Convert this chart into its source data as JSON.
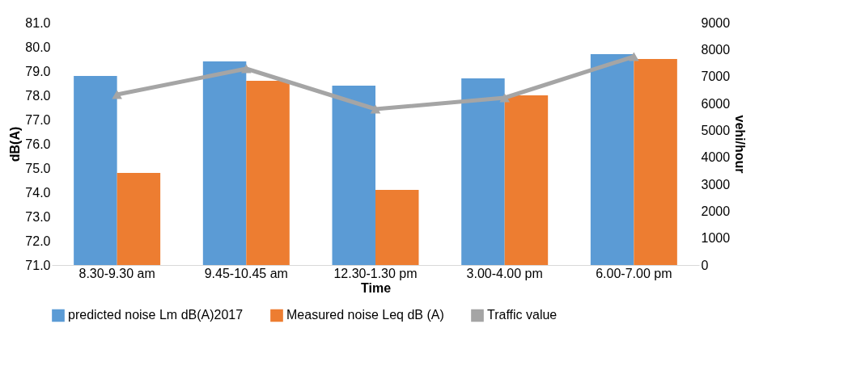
{
  "chart_data": {
    "type": "bar",
    "xlabel": "Time",
    "ylabel": "dB(A)",
    "y2label": "vehi/hour",
    "categories": [
      "8.30-9.30 am",
      "9.45-10.45 am",
      "12.30-1.30 pm",
      "3.00-4.00 pm",
      "6.00-7.00 pm"
    ],
    "series": [
      {
        "name": "predicted noise Lm dB(A)2017",
        "color": "#5b9bd5",
        "values": [
          78.8,
          79.4,
          78.4,
          78.7,
          79.7
        ]
      },
      {
        "name": "Measured noise Leq dB (A)",
        "color": "#ed7d31",
        "values": [
          74.8,
          78.6,
          74.1,
          78.0,
          79.5
        ]
      },
      {
        "name": "Traffic value",
        "color": "#a5a5a5",
        "type": "line",
        "axis": "y2",
        "marker": "triangle",
        "values": [
          6330,
          7290,
          5790,
          6210,
          7740
        ]
      }
    ],
    "ylim": [
      71,
      81
    ],
    "yticks": [
      {
        "value": 71,
        "label": "71.0"
      },
      {
        "value": 72,
        "label": "72.0"
      },
      {
        "value": 73,
        "label": "73.0"
      },
      {
        "value": 74,
        "label": "74.0"
      },
      {
        "value": 75,
        "label": "75.0"
      },
      {
        "value": 76,
        "label": "76.0"
      },
      {
        "value": 77,
        "label": "77.0"
      },
      {
        "value": 78,
        "label": "78.0"
      },
      {
        "value": 79,
        "label": "79.0"
      },
      {
        "value": 80,
        "label": "80.0"
      },
      {
        "value": 81,
        "label": "81.0"
      }
    ],
    "y2lim": [
      0,
      9000
    ],
    "y2ticks": [
      0,
      1000,
      2000,
      3000,
      4000,
      5000,
      6000,
      7000,
      8000,
      9000
    ],
    "grid": false,
    "legend": "bottom"
  }
}
